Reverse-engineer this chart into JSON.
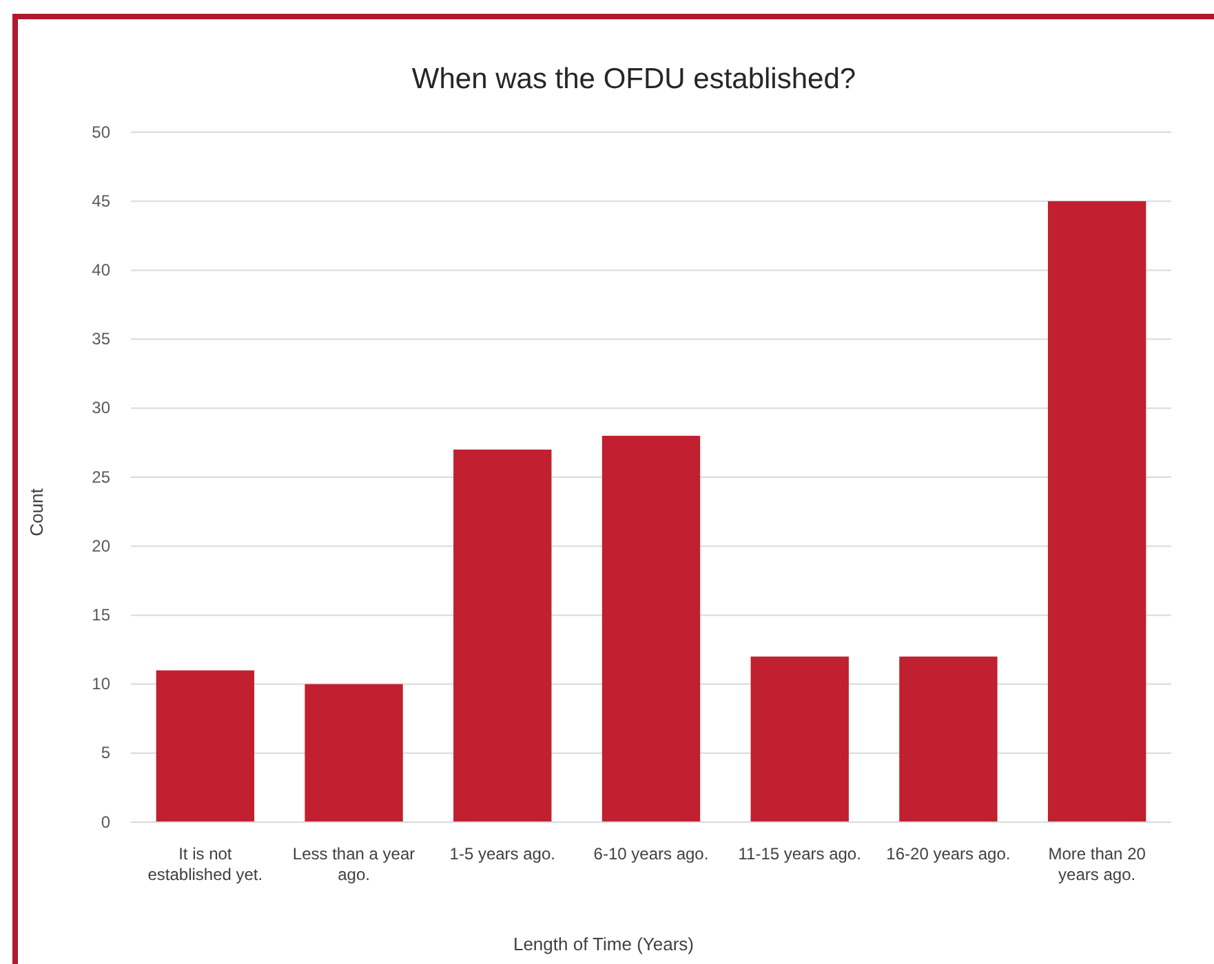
{
  "chart_data": {
    "type": "bar",
    "title": "When was the OFDU established?",
    "xlabel": "Length of Time (Years)",
    "ylabel": "Count",
    "categories": [
      "It is not established yet.",
      "Less than a year ago.",
      "1-5 years ago.",
      "6-10 years ago.",
      "11-15 years ago.",
      "16-20 years ago.",
      "More than 20 years ago."
    ],
    "values": [
      11,
      10,
      27,
      28,
      12,
      12,
      45
    ],
    "color": "#c0202f",
    "ylim": [
      0,
      50
    ],
    "yticks": [
      0,
      5,
      10,
      15,
      20,
      25,
      30,
      35,
      40,
      45,
      50
    ],
    "grid": "y"
  }
}
